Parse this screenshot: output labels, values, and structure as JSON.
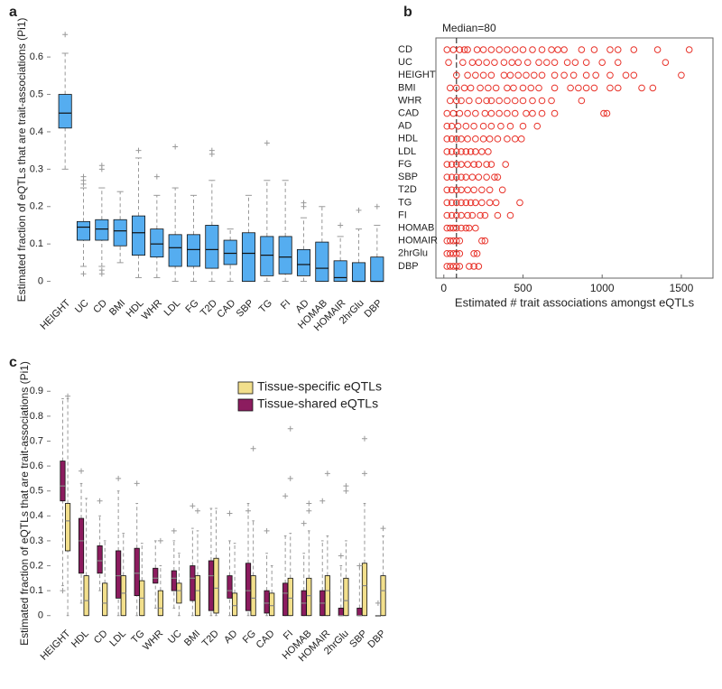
{
  "chart_data": [
    {
      "type": "box",
      "label": "a",
      "ylabel": "Estimated fraction of eQTLs that are trait-associations (Pi1)",
      "categories": [
        "HEIGHT",
        "UC",
        "CD",
        "BMI",
        "HDL",
        "WHR",
        "LDL",
        "FG",
        "T2D",
        "CAD",
        "SBP",
        "TG",
        "FI",
        "AD",
        "HOMAB",
        "HOMAIR",
        "2hrGlu",
        "DBP"
      ],
      "color": "#55adf0",
      "boxes": [
        [
          0.3,
          0.41,
          0.45,
          0.5,
          0.61
        ],
        [
          0.04,
          0.11,
          0.145,
          0.16,
          0.25
        ],
        [
          0.04,
          0.11,
          0.14,
          0.165,
          0.25
        ],
        [
          0.05,
          0.095,
          0.135,
          0.165,
          0.24
        ],
        [
          0.01,
          0.07,
          0.13,
          0.175,
          0.33
        ],
        [
          0.01,
          0.065,
          0.1,
          0.14,
          0.23
        ],
        [
          0,
          0.04,
          0.09,
          0.125,
          0.25
        ],
        [
          0,
          0.04,
          0.085,
          0.125,
          0.23
        ],
        [
          0,
          0.035,
          0.085,
          0.15,
          0.27
        ],
        [
          0,
          0.045,
          0.075,
          0.11,
          0.14
        ],
        [
          0,
          0,
          0.075,
          0.13,
          0.23
        ],
        [
          0,
          0.015,
          0.07,
          0.12,
          0.27
        ],
        [
          0,
          0.02,
          0.065,
          0.12,
          0.27
        ],
        [
          0,
          0.015,
          0.045,
          0.085,
          0.17
        ],
        [
          0,
          0,
          0.035,
          0.105,
          0.2
        ],
        [
          0,
          0,
          0.01,
          0.055,
          0.12
        ],
        [
          0,
          0,
          0,
          0.05,
          0.14
        ],
        [
          0,
          0,
          0,
          0.065,
          0.15
        ]
      ],
      "outliers": [
        [
          0.66
        ],
        [
          0.02,
          0.26,
          0.27,
          0.28
        ],
        [
          0.02,
          0.03,
          0.3,
          0.31
        ],
        [],
        [
          0.35
        ],
        [
          0.28
        ],
        [
          0.36
        ],
        [],
        [
          0.34,
          0.35
        ],
        [],
        [],
        [
          0.37
        ],
        [],
        [
          0.2,
          0.21
        ],
        [],
        [
          0.15
        ],
        [
          0.19
        ],
        [
          0.2
        ]
      ],
      "ylim": [
        -0.03,
        0.68
      ],
      "yticks": [
        0,
        0.1,
        0.2,
        0.3,
        0.4,
        0.5,
        0.6
      ]
    },
    {
      "type": "scatter",
      "label": "b",
      "xlabel": "Estimated # trait associations amongst eQTLs",
      "annotation": "Median=80",
      "median": 80,
      "color": "#e8332a",
      "categories": [
        "CD",
        "UC",
        "HEIGHT",
        "BMI",
        "WHR",
        "CAD",
        "AD",
        "HDL",
        "LDL",
        "FG",
        "SBP",
        "T2D",
        "TG",
        "FI",
        "HOMAB",
        "HOMAIR",
        "2hrGlu",
        "DBP"
      ],
      "points": [
        [
          20,
          60,
          100,
          130,
          150,
          210,
          250,
          300,
          350,
          400,
          450,
          500,
          560,
          620,
          680,
          720,
          760,
          870,
          950,
          1050,
          1100,
          1200,
          1350,
          1550
        ],
        [
          30,
          120,
          180,
          220,
          270,
          320,
          380,
          430,
          470,
          530,
          600,
          650,
          700,
          780,
          830,
          900,
          1000,
          1100,
          1400
        ],
        [
          80,
          150,
          200,
          250,
          300,
          380,
          420,
          470,
          520,
          570,
          620,
          700,
          760,
          820,
          900,
          960,
          1050,
          1150,
          1200,
          1500
        ],
        [
          40,
          80,
          130,
          170,
          230,
          280,
          330,
          400,
          440,
          500,
          550,
          600,
          700,
          800,
          850,
          900,
          950,
          1050,
          1100,
          1250,
          1320
        ],
        [
          40,
          80,
          110,
          160,
          220,
          270,
          300,
          350,
          400,
          450,
          500,
          560,
          620,
          680,
          870
        ],
        [
          20,
          60,
          100,
          150,
          200,
          260,
          300,
          350,
          400,
          450,
          520,
          560,
          620,
          700,
          1010,
          1030
        ],
        [
          20,
          50,
          90,
          140,
          190,
          250,
          300,
          360,
          420,
          500,
          590
        ],
        [
          20,
          50,
          80,
          110,
          150,
          200,
          250,
          290,
          340,
          400,
          450,
          490
        ],
        [
          20,
          50,
          80,
          110,
          140,
          170,
          200,
          240,
          280
        ],
        [
          20,
          50,
          80,
          110,
          150,
          190,
          220,
          270,
          300,
          390
        ],
        [
          20,
          50,
          80,
          110,
          140,
          180,
          220,
          270,
          320,
          340
        ],
        [
          20,
          50,
          80,
          110,
          150,
          190,
          240,
          290,
          370
        ],
        [
          20,
          50,
          80,
          110,
          140,
          170,
          200,
          240,
          290,
          330,
          480
        ],
        [
          20,
          50,
          80,
          110,
          150,
          180,
          230,
          260,
          340,
          420
        ],
        [
          20,
          40,
          60,
          80,
          110,
          140,
          160,
          200
        ],
        [
          20,
          40,
          60,
          80,
          100,
          240,
          260
        ],
        [
          20,
          40,
          60,
          80,
          100,
          190,
          210
        ],
        [
          20,
          40,
          60,
          80,
          100,
          160,
          190,
          220
        ]
      ],
      "xlim": [
        -50,
        1700
      ],
      "xticks": [
        0,
        500,
        1000,
        1500
      ]
    },
    {
      "type": "box",
      "label": "c",
      "ylabel": "Estimated fraction of eQTLs that are trait-associations (Pi1)",
      "categories": [
        "HEIGHT",
        "HDL",
        "CD",
        "LDL",
        "TG",
        "WHR",
        "UC",
        "BMI",
        "T2D",
        "AD",
        "FG",
        "CAD",
        "FI",
        "HOMAB",
        "HOMAIR",
        "2hrGlu",
        "SBP",
        "DBP"
      ],
      "legend": "upper right",
      "series": [
        {
          "name": "Tissue-specific eQTLs",
          "color": "#f2df8c",
          "boxes": [
            [
              0,
              0.26,
              0.38,
              0.45,
              0.87
            ],
            [
              0,
              0,
              0.06,
              0.16,
              0.47
            ],
            [
              0,
              0,
              0.05,
              0.13,
              0.3
            ],
            [
              0,
              0,
              0.09,
              0.16,
              0.33
            ],
            [
              0,
              0,
              0.07,
              0.14,
              0.29
            ],
            [
              0,
              0,
              0.03,
              0.1,
              0.2
            ],
            [
              0,
              0.05,
              0.1,
              0.13,
              0.25
            ],
            [
              0,
              0,
              0.1,
              0.16,
              0.34
            ],
            [
              0,
              0.01,
              0.11,
              0.23,
              0.43
            ],
            [
              0,
              0,
              0.04,
              0.09,
              0.29
            ],
            [
              0,
              0,
              0.07,
              0.16,
              0.38
            ],
            [
              0,
              0,
              0.04,
              0.09,
              0.2
            ],
            [
              0,
              0,
              0.07,
              0.15,
              0.33
            ],
            [
              0,
              0,
              0.08,
              0.15,
              0.34
            ],
            [
              0,
              0,
              0.1,
              0.16,
              0.32
            ],
            [
              0,
              0,
              0.06,
              0.15,
              0.3
            ],
            [
              0,
              0,
              0.12,
              0.21,
              0.45
            ],
            [
              0,
              0,
              0.1,
              0.16,
              0.32
            ]
          ],
          "outliers": [
            [
              0.88
            ],
            [],
            [],
            [],
            [],
            [
              0.3
            ],
            [],
            [
              0.42
            ],
            [],
            [],
            [
              0.67
            ],
            [],
            [
              0.55,
              0.75
            ],
            [
              0.42,
              0.45
            ],
            [
              0.57
            ],
            [
              0.5,
              0.52
            ],
            [
              0.57,
              0.71
            ],
            [
              0.35
            ]
          ]
        },
        {
          "name": "Tissue-shared eQTLs",
          "color": "#8c1c5f",
          "boxes": [
            [
              0.12,
              0.46,
              0.52,
              0.62,
              0.87
            ],
            [
              0.05,
              0.17,
              0.3,
              0.39,
              0.53
            ],
            [
              0.1,
              0.17,
              0.22,
              0.28,
              0.4
            ],
            [
              0,
              0.07,
              0.16,
              0.26,
              0.5
            ],
            [
              0,
              0.08,
              0.17,
              0.27,
              0.45
            ],
            [
              0.03,
              0.13,
              0.15,
              0.19,
              0.3
            ],
            [
              0.03,
              0.1,
              0.15,
              0.18,
              0.3
            ],
            [
              0,
              0.06,
              0.15,
              0.2,
              0.35
            ],
            [
              0,
              0.02,
              0.16,
              0.22,
              0.43
            ],
            [
              0,
              0.07,
              0.1,
              0.16,
              0.3
            ],
            [
              0,
              0.02,
              0.1,
              0.21,
              0.45
            ],
            [
              0,
              0.01,
              0.05,
              0.1,
              0.25
            ],
            [
              0,
              0,
              0.09,
              0.13,
              0.32
            ],
            [
              0,
              0,
              0.05,
              0.1,
              0.25
            ],
            [
              0,
              0,
              0.05,
              0.1,
              0.3
            ],
            [
              0,
              0,
              0,
              0.03,
              0.2
            ],
            [
              0,
              0,
              0,
              0.03,
              0.2
            ],
            [
              0,
              0,
              0,
              0,
              0
            ]
          ],
          "outliers": [
            [
              0.1
            ],
            [
              0.58
            ],
            [
              0.46
            ],
            [
              0.55
            ],
            [
              0.53
            ],
            [],
            [
              0.34
            ],
            [
              0.44
            ],
            [],
            [
              0.41
            ],
            [
              0.42
            ],
            [
              0.34
            ],
            [
              0.48
            ],
            [
              0.37
            ],
            [
              0.46
            ],
            [
              0.24
            ],
            [
              0.2
            ],
            [
              0.05
            ]
          ]
        }
      ],
      "ylim": [
        -0.03,
        0.93
      ],
      "yticks": [
        0,
        0.1,
        0.2,
        0.3,
        0.4,
        0.5,
        0.6,
        0.7,
        0.8,
        0.9
      ]
    }
  ]
}
